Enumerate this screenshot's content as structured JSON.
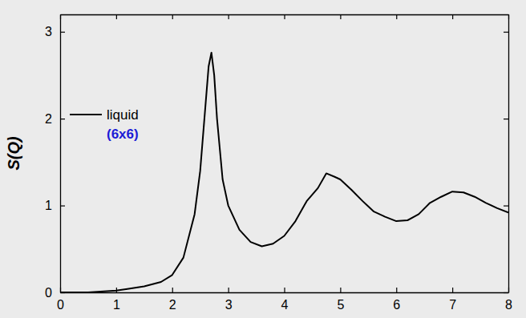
{
  "chart_data": {
    "type": "line",
    "y_label": "S(Q)",
    "x": [
      0,
      0.5,
      1.0,
      1.2,
      1.5,
      1.8,
      2.0,
      2.2,
      2.4,
      2.5,
      2.6,
      2.65,
      2.7,
      2.75,
      2.8,
      2.9,
      3.0,
      3.2,
      3.4,
      3.6,
      3.8,
      4.0,
      4.2,
      4.4,
      4.6,
      4.75,
      4.9,
      5.0,
      5.2,
      5.4,
      5.6,
      5.8,
      6.0,
      6.2,
      6.4,
      6.6,
      6.8,
      7.0,
      7.2,
      7.4,
      7.6,
      7.8,
      8.0
    ],
    "series": [
      {
        "name": "liquid",
        "color": "#000000",
        "values": [
          0,
          0.0,
          0.02,
          0.04,
          0.07,
          0.12,
          0.2,
          0.4,
          0.9,
          1.4,
          2.2,
          2.6,
          2.76,
          2.5,
          2.0,
          1.3,
          1.0,
          0.72,
          0.58,
          0.53,
          0.56,
          0.65,
          0.82,
          1.05,
          1.2,
          1.37,
          1.33,
          1.3,
          1.18,
          1.05,
          0.93,
          0.87,
          0.82,
          0.83,
          0.9,
          1.03,
          1.1,
          1.16,
          1.15,
          1.1,
          1.03,
          0.97,
          0.92
        ]
      }
    ],
    "annotations": [
      {
        "text": "(6x6)",
        "color": "#1c1cd6"
      }
    ],
    "xlim": [
      0,
      8
    ],
    "ylim": [
      0,
      3.2
    ],
    "xticks": [
      0,
      1,
      2,
      3,
      4,
      5,
      6,
      7,
      8
    ],
    "yticks": [
      0,
      1,
      2,
      3
    ],
    "legend": "left",
    "grid": false
  }
}
